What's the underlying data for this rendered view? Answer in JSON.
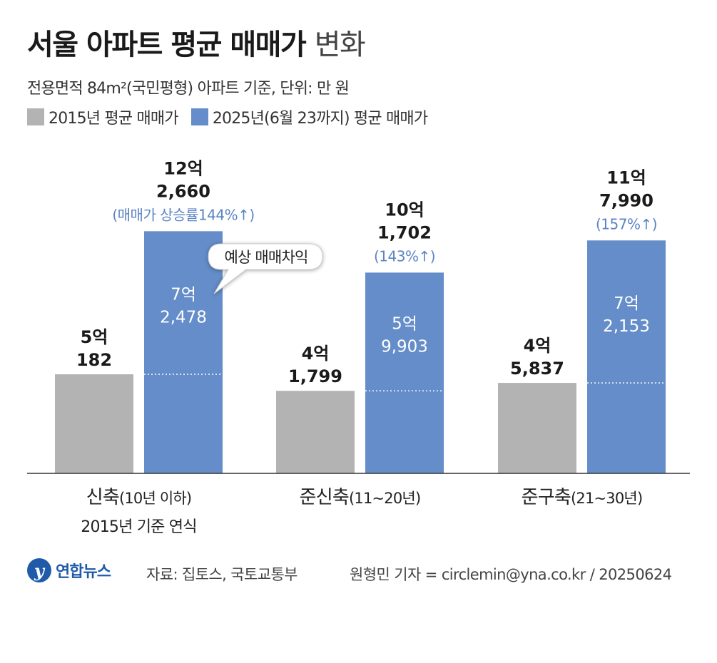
{
  "header": {
    "title_bold": "서울 아파트 평균 매매가",
    "title_light": "변화",
    "subtitle": "전용면적 84m²(국민평형) 아파트 기준, 단위: 만 원"
  },
  "legend": [
    {
      "label": "2015년 평균 매매가",
      "color": "#b3b3b3"
    },
    {
      "label": "2025년(6월 23까지) 평균 매매가",
      "color": "#648dc9"
    }
  ],
  "callout": {
    "text": "예상 매매차익"
  },
  "chart_data": {
    "type": "bar",
    "title": "서울 아파트 평균 매매가 변화",
    "categories": [
      {
        "line1_bold": "신축",
        "line1_rest": "(10년 이하)",
        "line2": "2015년 기준 연식"
      },
      {
        "line1_bold": "준신축",
        "line1_rest": "(11~20년)",
        "line2": ""
      },
      {
        "line1_bold": "준구축",
        "line1_rest": "(21~30년)",
        "line2": ""
      }
    ],
    "series": [
      {
        "name": "2015년 평균 매매가",
        "color": "#b3b3b3",
        "values": [
          50182,
          41799,
          45837
        ],
        "labels": [
          [
            "5억",
            "182"
          ],
          [
            "4억",
            "1,799"
          ],
          [
            "4억",
            "5,837"
          ]
        ]
      },
      {
        "name": "2025년(6월 23까지) 평균 매매가",
        "color": "#648dc9",
        "values": [
          122660,
          101702,
          117990
        ],
        "labels": [
          [
            "12억",
            "2,660"
          ],
          [
            "10억",
            "1,702"
          ],
          [
            "11억",
            "7,990"
          ]
        ],
        "growth": [
          "(매매가 상승률144%↑)",
          "(143%↑)",
          "(157%↑)"
        ],
        "gain_values": [
          72478,
          59903,
          72153
        ],
        "gain_labels": [
          [
            "7억",
            "2,478"
          ],
          [
            "5억",
            "9,903"
          ],
          [
            "7억",
            "2,153"
          ]
        ]
      }
    ],
    "ylim": [
      0,
      130000
    ],
    "grid": false
  },
  "footer": {
    "logo_text": "연합뉴스",
    "source": "자료: 집토스, 국토교통부",
    "credit": "원형민 기자 = circlemin@yna.co.kr / 20250624"
  }
}
